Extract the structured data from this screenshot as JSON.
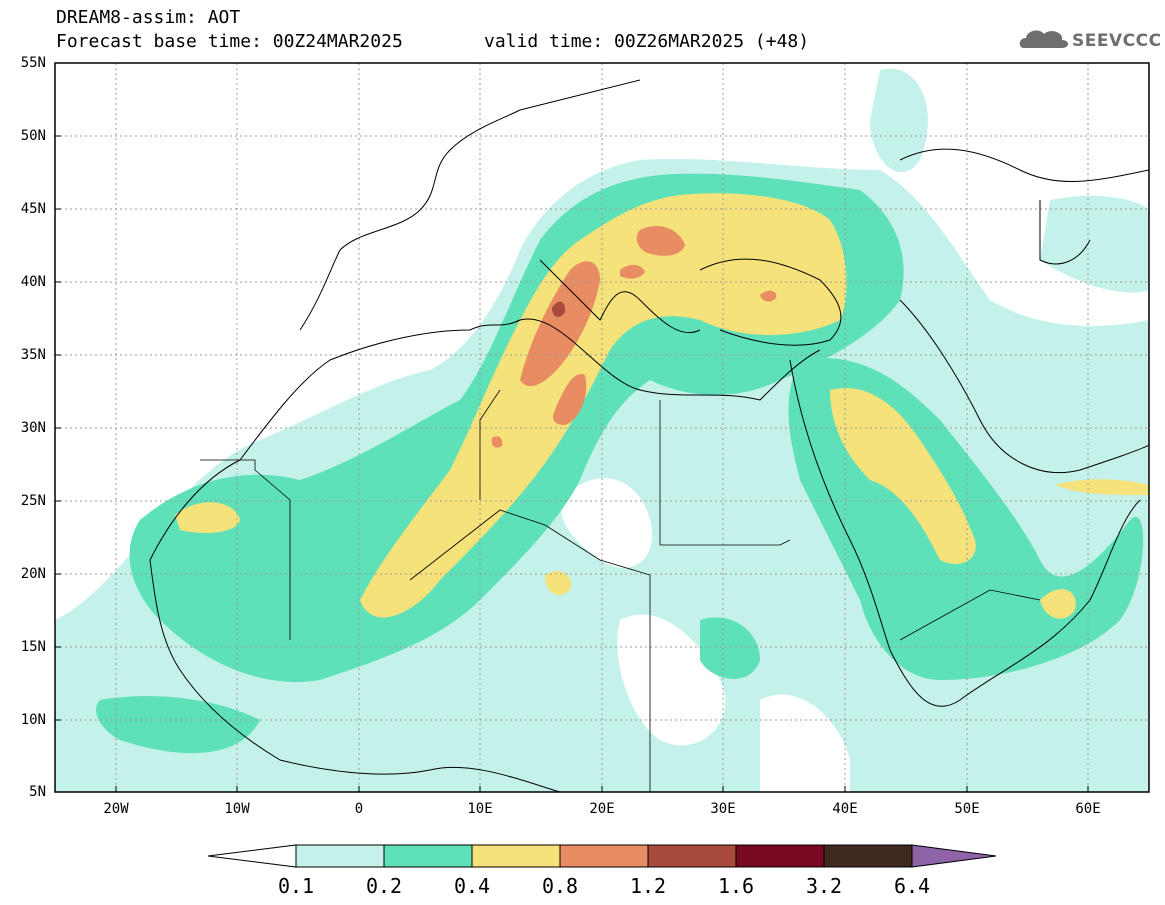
{
  "title": {
    "line1": "DREAM8-assim: AOT",
    "base": "Forecast base time: 00Z24MAR2025",
    "valid": "valid time: 00Z26MAR2025 (+48)"
  },
  "logo": {
    "icon": "cloud-icon",
    "text": "SEEVCCC"
  },
  "axes": {
    "lat_labels": [
      "55N",
      "50N",
      "45N",
      "40N",
      "35N",
      "30N",
      "25N",
      "20N",
      "15N",
      "10N",
      "5N"
    ],
    "lon_labels": [
      "20W",
      "10W",
      "0",
      "10E",
      "20E",
      "30E",
      "40E",
      "50E",
      "60E"
    ]
  },
  "colorbar": {
    "labels": [
      "0.1",
      "0.2",
      "0.4",
      "0.8",
      "1.2",
      "1.6",
      "3.2",
      "6.4"
    ],
    "colors": [
      "#ffffff",
      "#c4f2ea",
      "#5ee0b8",
      "#f5e27a",
      "#e88c64",
      "#a84a3c",
      "#7a0a24",
      "#3e2a1e",
      "#8e64a8"
    ]
  },
  "map": {
    "region": "North Africa, Europe and Middle East",
    "lat_range": [
      5,
      55
    ],
    "lon_range": [
      -25,
      65
    ],
    "field": "AOT"
  }
}
